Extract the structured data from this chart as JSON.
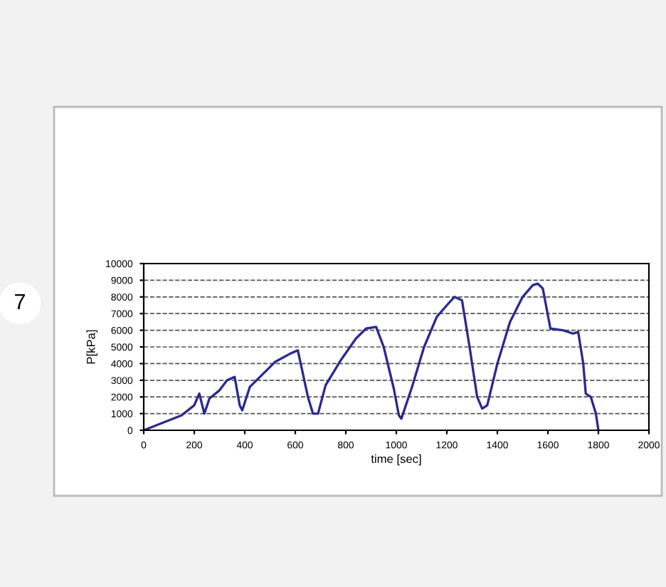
{
  "chart_data": {
    "type": "line",
    "xlabel": "time [sec]",
    "ylabel": "P[kPa]",
    "annotations": [
      "7"
    ],
    "x": [
      0,
      50,
      100,
      150,
      200,
      220,
      240,
      260,
      300,
      330,
      360,
      380,
      390,
      420,
      480,
      520,
      580,
      610,
      650,
      670,
      690,
      720,
      780,
      840,
      880,
      920,
      950,
      990,
      1010,
      1020,
      1060,
      1110,
      1160,
      1200,
      1230,
      1260,
      1290,
      1320,
      1340,
      1360,
      1400,
      1450,
      1500,
      1540,
      1560,
      1580,
      1610,
      1660,
      1700,
      1720,
      1740,
      1750,
      1770,
      1790,
      1800
    ],
    "series": [
      {
        "color": "#2b2b8c",
        "values": [
          0,
          300,
          600,
          900,
          1500,
          2200,
          1000,
          1900,
          2400,
          3000,
          3200,
          1500,
          1200,
          2600,
          3500,
          4100,
          4600,
          4800,
          2000,
          1000,
          1000,
          2700,
          4200,
          5500,
          6100,
          6200,
          5000,
          2500,
          900,
          700,
          2500,
          5000,
          6800,
          7500,
          8000,
          7800,
          5000,
          2000,
          1300,
          1500,
          4000,
          6500,
          8000,
          8700,
          8800,
          8500,
          6100,
          6000,
          5800,
          5900,
          4000,
          2200,
          2000,
          1000,
          0
        ]
      }
    ],
    "xlim": [
      0,
      2000
    ],
    "xticks": [
      0,
      200,
      400,
      600,
      800,
      1000,
      1200,
      1400,
      1600,
      1800,
      2000
    ],
    "ylim": [
      0,
      10000
    ],
    "yticks": [
      0,
      1000,
      2000,
      3000,
      4000,
      5000,
      6000,
      7000,
      8000,
      9000,
      10000
    ],
    "grid": "y",
    "legend": false,
    "marker": "none",
    "line_style": "solid"
  }
}
